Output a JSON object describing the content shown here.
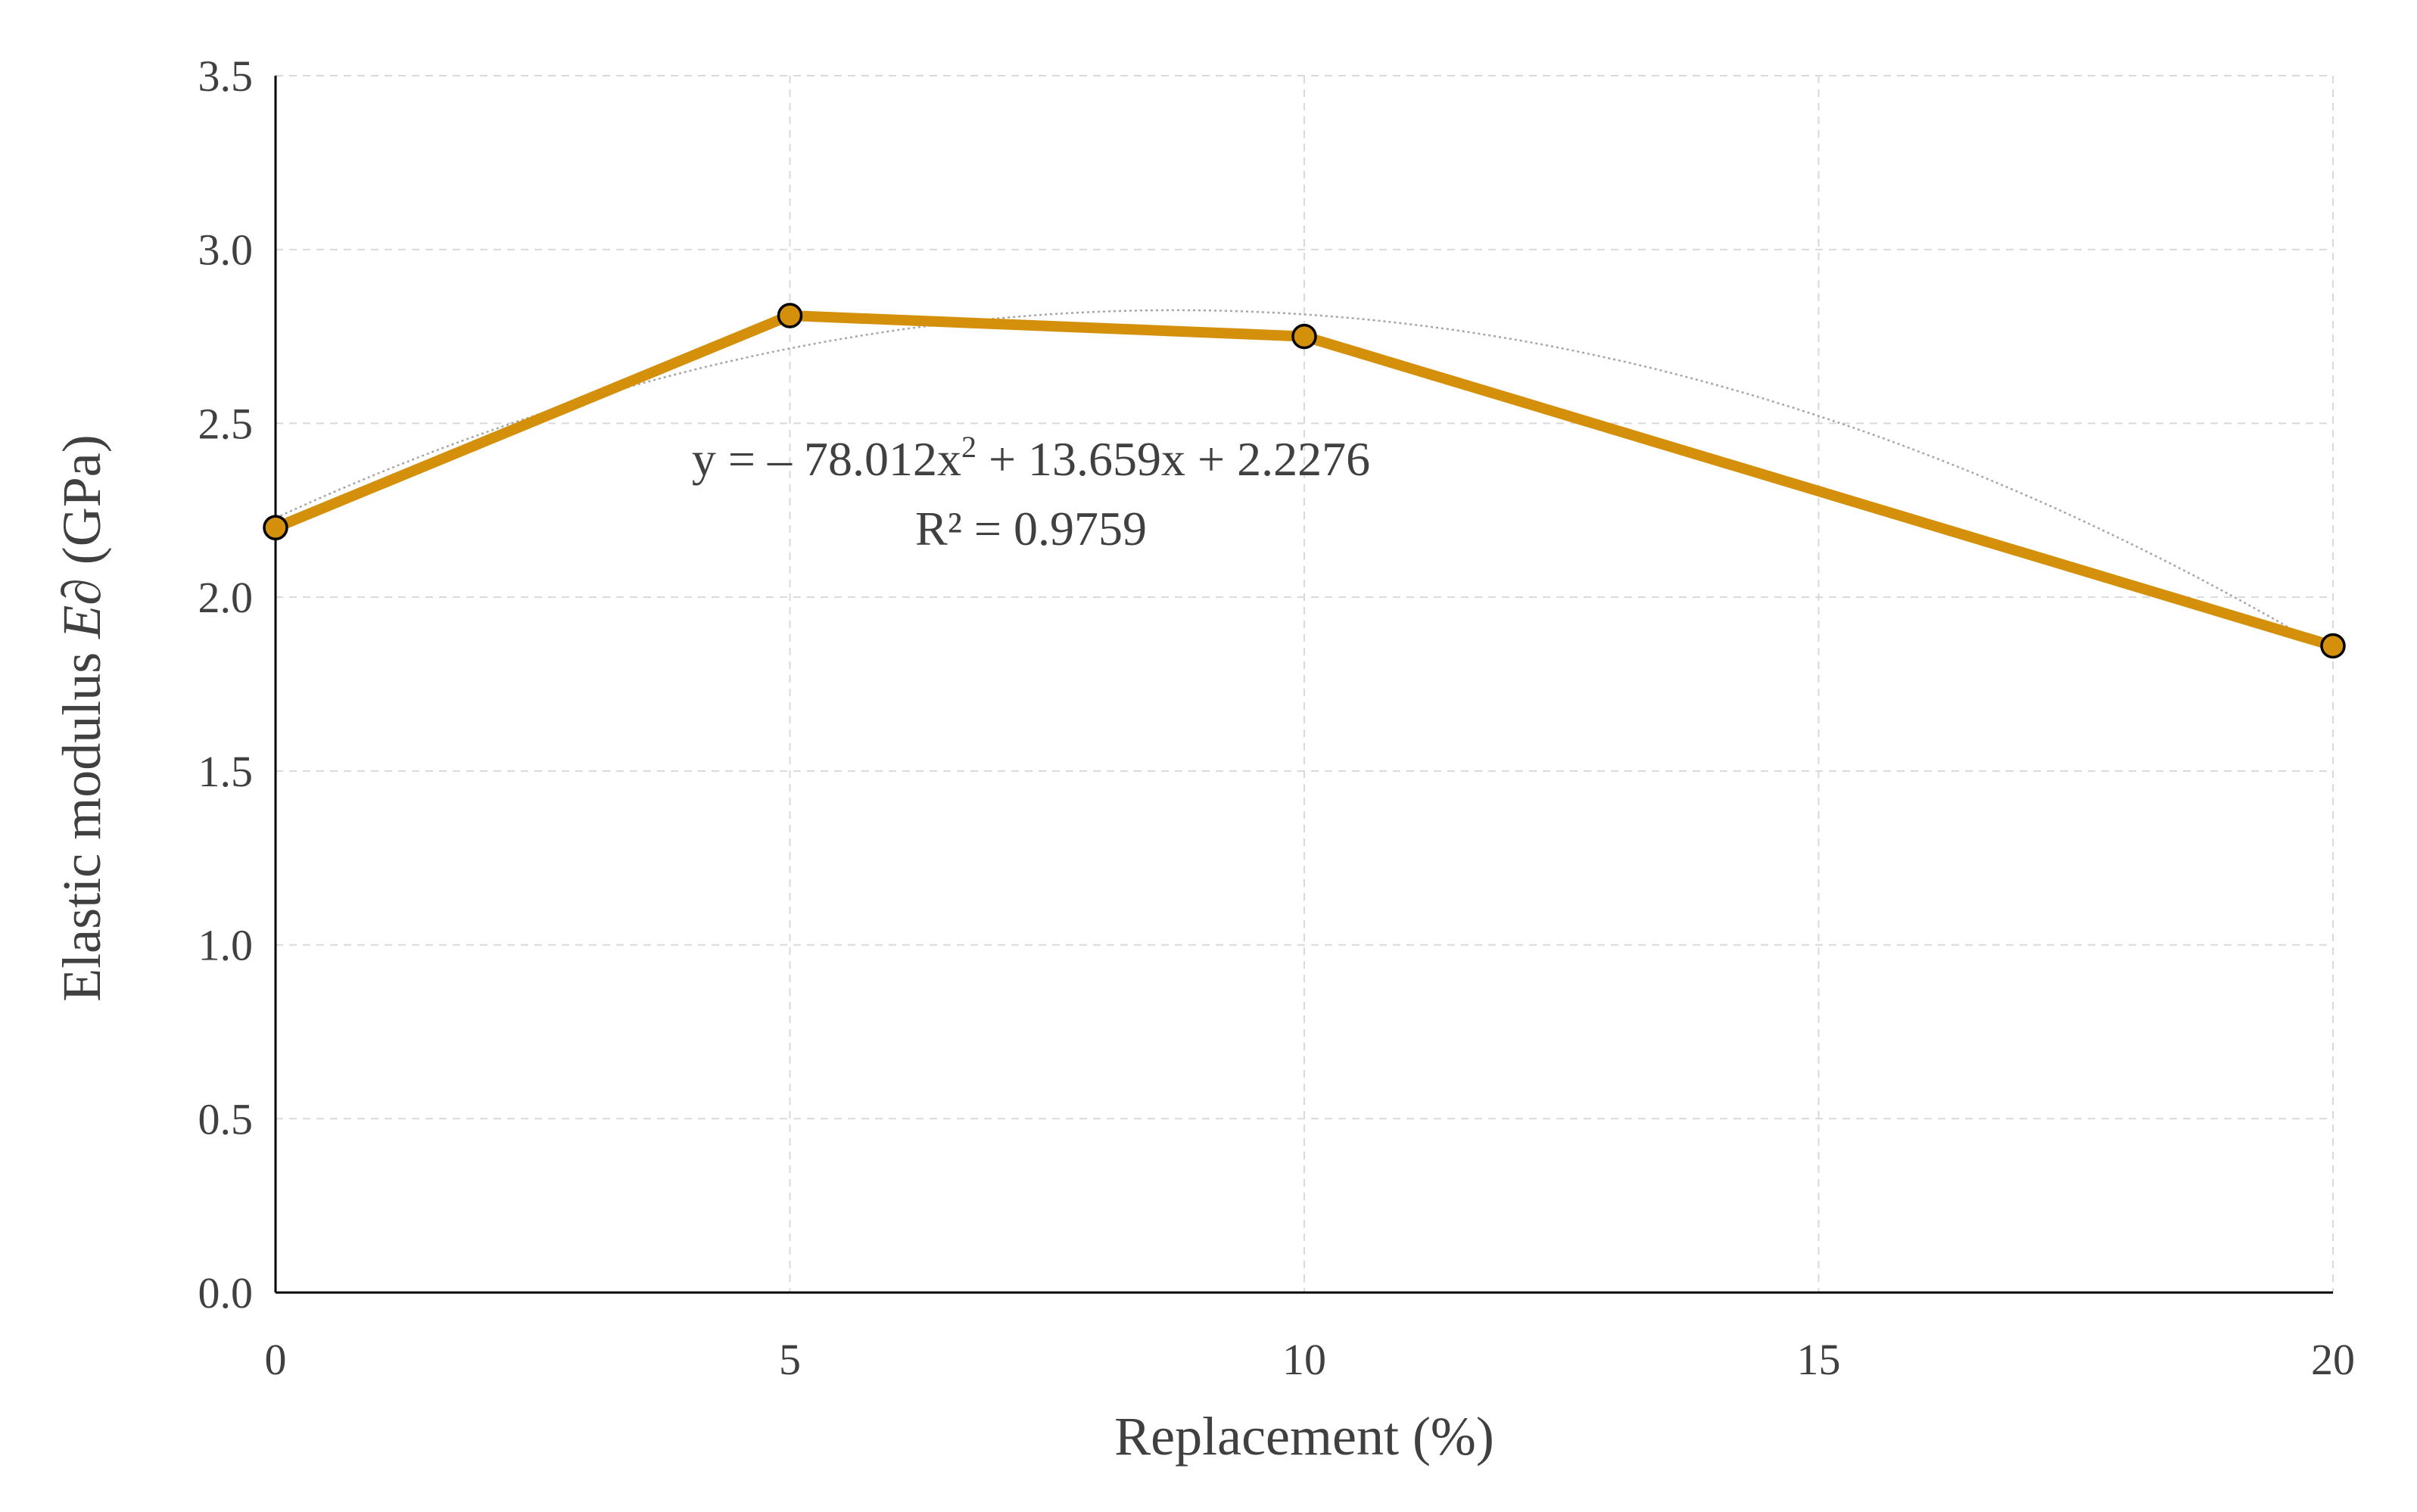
{
  "chart_data": {
    "type": "line",
    "x": [
      0,
      5,
      10,
      20
    ],
    "series": [
      {
        "values": [
          2.2,
          2.81,
          2.75,
          1.86
        ],
        "color": "#d4900a"
      }
    ],
    "trendline": {
      "type": "polynomial",
      "coefficients": {
        "a": -78.012,
        "b": 13.659,
        "c": 2.2276
      },
      "equation_parts": {
        "lead": "y = – 78.012x",
        "exponent": "2",
        "tail": " + 13.659x + 2.2276"
      },
      "r_squared_text": "R² = 0.9759",
      "color": "#a6a6a6"
    },
    "xlabel": "Replacement (%)",
    "ylabel": {
      "prefix": "Elastic modulus ",
      "italic": "E",
      "symbol": "∂",
      "suffix": " (GPa)"
    },
    "xlim": [
      0,
      20
    ],
    "ylim": [
      0,
      3.5
    ],
    "xticks": [
      0,
      5,
      10,
      15,
      20
    ],
    "xtick_labels": [
      "0",
      "5",
      "10",
      "15",
      "20"
    ],
    "yticks": [
      0,
      0.5,
      1,
      1.5,
      2,
      2.5,
      3,
      3.5
    ],
    "ytick_labels": [
      "0.0",
      "0.5",
      "1.0",
      "1.5",
      "2.0",
      "2.5",
      "3.0",
      "3.5"
    ],
    "grid": true
  }
}
